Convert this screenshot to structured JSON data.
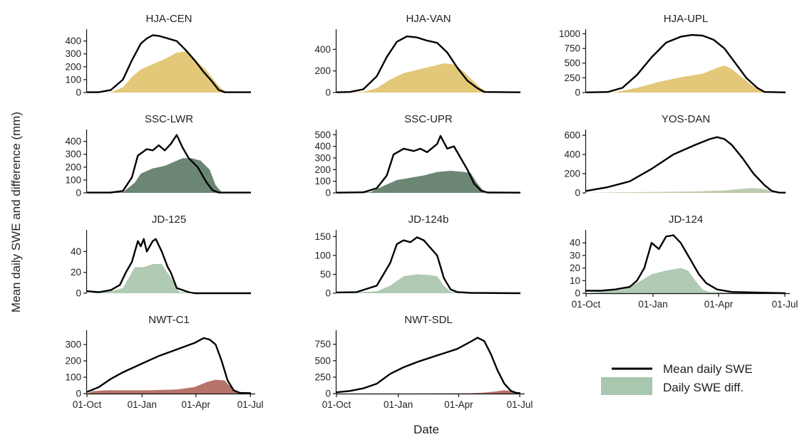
{
  "figure": {
    "ylabel": "Mean daily SWE and difference (mm)",
    "xlabel": "Date"
  },
  "legend": {
    "items": [
      {
        "label": "Mean daily SWE",
        "kind": "line",
        "color": "#000000"
      },
      {
        "label": "Daily SWE diff.",
        "kind": "area",
        "color": "#a9c6ae"
      }
    ]
  },
  "x_ticks": [
    "01-Oct",
    "01-Jan",
    "01-Apr",
    "01-Jul"
  ],
  "chart_data": [
    {
      "type": "area",
      "title": "HJA-CEN",
      "ylim": [
        0,
        470
      ],
      "yticks": [
        0,
        100,
        200,
        300,
        400
      ],
      "diff_color": "#e1c36e",
      "show_x_axis": false,
      "swe": [
        [
          0,
          2
        ],
        [
          20,
          3
        ],
        [
          40,
          20
        ],
        [
          60,
          100
        ],
        [
          75,
          250
        ],
        [
          90,
          380
        ],
        [
          100,
          420
        ],
        [
          110,
          445
        ],
        [
          120,
          440
        ],
        [
          135,
          420
        ],
        [
          150,
          400
        ],
        [
          165,
          330
        ],
        [
          180,
          250
        ],
        [
          195,
          160
        ],
        [
          210,
          80
        ],
        [
          220,
          20
        ],
        [
          230,
          2
        ],
        [
          274,
          2
        ]
      ],
      "diff": [
        [
          0,
          0
        ],
        [
          40,
          3
        ],
        [
          60,
          40
        ],
        [
          75,
          120
        ],
        [
          90,
          180
        ],
        [
          110,
          220
        ],
        [
          130,
          260
        ],
        [
          150,
          310
        ],
        [
          165,
          320
        ],
        [
          180,
          260
        ],
        [
          200,
          170
        ],
        [
          215,
          80
        ],
        [
          225,
          30
        ],
        [
          235,
          3
        ],
        [
          274,
          0
        ]
      ]
    },
    {
      "type": "area",
      "title": "HJA-VAN",
      "ylim": [
        0,
        560
      ],
      "yticks": [
        0,
        200,
        400
      ],
      "diff_color": "#e1c36e",
      "show_x_axis": false,
      "swe": [
        [
          0,
          2
        ],
        [
          20,
          5
        ],
        [
          40,
          30
        ],
        [
          60,
          150
        ],
        [
          75,
          330
        ],
        [
          90,
          470
        ],
        [
          105,
          520
        ],
        [
          120,
          510
        ],
        [
          135,
          480
        ],
        [
          150,
          460
        ],
        [
          165,
          370
        ],
        [
          180,
          230
        ],
        [
          195,
          110
        ],
        [
          210,
          40
        ],
        [
          220,
          5
        ],
        [
          274,
          2
        ]
      ],
      "diff": [
        [
          0,
          0
        ],
        [
          40,
          5
        ],
        [
          60,
          40
        ],
        [
          80,
          120
        ],
        [
          100,
          180
        ],
        [
          120,
          210
        ],
        [
          140,
          240
        ],
        [
          160,
          270
        ],
        [
          175,
          260
        ],
        [
          190,
          190
        ],
        [
          205,
          100
        ],
        [
          215,
          40
        ],
        [
          225,
          5
        ],
        [
          274,
          0
        ]
      ]
    },
    {
      "type": "area",
      "title": "HJA-UPL",
      "ylim": [
        0,
        1030
      ],
      "yticks": [
        0,
        250,
        500,
        750,
        1000
      ],
      "diff_color": "#e1c36e",
      "show_x_axis": false,
      "swe": [
        [
          0,
          3
        ],
        [
          30,
          10
        ],
        [
          50,
          80
        ],
        [
          70,
          300
        ],
        [
          90,
          600
        ],
        [
          110,
          850
        ],
        [
          130,
          950
        ],
        [
          145,
          980
        ],
        [
          160,
          970
        ],
        [
          175,
          900
        ],
        [
          190,
          750
        ],
        [
          205,
          500
        ],
        [
          220,
          250
        ],
        [
          235,
          80
        ],
        [
          245,
          10
        ],
        [
          274,
          3
        ]
      ],
      "diff": [
        [
          0,
          0
        ],
        [
          40,
          5
        ],
        [
          70,
          80
        ],
        [
          100,
          180
        ],
        [
          130,
          260
        ],
        [
          160,
          320
        ],
        [
          180,
          420
        ],
        [
          190,
          460
        ],
        [
          200,
          400
        ],
        [
          215,
          250
        ],
        [
          230,
          100
        ],
        [
          240,
          30
        ],
        [
          250,
          3
        ],
        [
          274,
          0
        ]
      ]
    },
    {
      "type": "area",
      "title": "SSC-LWR",
      "ylim": [
        0,
        470
      ],
      "yticks": [
        0,
        100,
        200,
        300,
        400
      ],
      "diff_color": "#5f7c68",
      "show_x_axis": false,
      "swe": [
        [
          0,
          2
        ],
        [
          40,
          3
        ],
        [
          60,
          15
        ],
        [
          75,
          120
        ],
        [
          85,
          290
        ],
        [
          100,
          340
        ],
        [
          110,
          330
        ],
        [
          120,
          370
        ],
        [
          130,
          330
        ],
        [
          140,
          380
        ],
        [
          150,
          450
        ],
        [
          160,
          350
        ],
        [
          170,
          270
        ],
        [
          185,
          200
        ],
        [
          200,
          80
        ],
        [
          210,
          20
        ],
        [
          220,
          3
        ],
        [
          274,
          2
        ]
      ],
      "diff": [
        [
          0,
          0
        ],
        [
          60,
          5
        ],
        [
          80,
          80
        ],
        [
          90,
          150
        ],
        [
          110,
          190
        ],
        [
          130,
          210
        ],
        [
          150,
          250
        ],
        [
          160,
          270
        ],
        [
          175,
          270
        ],
        [
          190,
          250
        ],
        [
          205,
          180
        ],
        [
          215,
          60
        ],
        [
          225,
          5
        ],
        [
          274,
          0
        ]
      ]
    },
    {
      "type": "area",
      "title": "SSC-UPR",
      "ylim": [
        0,
        520
      ],
      "yticks": [
        0,
        100,
        200,
        300,
        400,
        500
      ],
      "diff_color": "#5f7c68",
      "show_x_axis": false,
      "swe": [
        [
          0,
          2
        ],
        [
          40,
          5
        ],
        [
          60,
          40
        ],
        [
          75,
          150
        ],
        [
          85,
          330
        ],
        [
          100,
          380
        ],
        [
          115,
          360
        ],
        [
          125,
          380
        ],
        [
          135,
          350
        ],
        [
          150,
          420
        ],
        [
          155,
          490
        ],
        [
          165,
          380
        ],
        [
          175,
          400
        ],
        [
          185,
          300
        ],
        [
          195,
          200
        ],
        [
          205,
          80
        ],
        [
          215,
          20
        ],
        [
          225,
          3
        ],
        [
          274,
          2
        ]
      ],
      "diff": [
        [
          0,
          0
        ],
        [
          50,
          5
        ],
        [
          70,
          60
        ],
        [
          90,
          110
        ],
        [
          110,
          130
        ],
        [
          130,
          150
        ],
        [
          150,
          180
        ],
        [
          170,
          190
        ],
        [
          190,
          180
        ],
        [
          200,
          170
        ],
        [
          210,
          80
        ],
        [
          220,
          10
        ],
        [
          274,
          0
        ]
      ]
    },
    {
      "type": "area",
      "title": "YOS-DAN",
      "ylim": [
        0,
        630
      ],
      "yticks": [
        0,
        200,
        400,
        600
      ],
      "diff_color": "#b9c8a7",
      "show_x_axis": false,
      "swe": [
        [
          0,
          20
        ],
        [
          30,
          60
        ],
        [
          60,
          120
        ],
        [
          90,
          250
        ],
        [
          120,
          400
        ],
        [
          150,
          500
        ],
        [
          170,
          560
        ],
        [
          180,
          580
        ],
        [
          190,
          560
        ],
        [
          200,
          500
        ],
        [
          215,
          360
        ],
        [
          230,
          200
        ],
        [
          245,
          80
        ],
        [
          255,
          20
        ],
        [
          265,
          3
        ],
        [
          274,
          2
        ]
      ],
      "diff": [
        [
          0,
          0
        ],
        [
          40,
          5
        ],
        [
          90,
          10
        ],
        [
          150,
          15
        ],
        [
          190,
          25
        ],
        [
          210,
          40
        ],
        [
          230,
          50
        ],
        [
          245,
          40
        ],
        [
          255,
          20
        ],
        [
          265,
          5
        ],
        [
          274,
          0
        ]
      ]
    },
    {
      "type": "area",
      "title": "JD-125",
      "ylim": [
        0,
        58
      ],
      "yticks": [
        0,
        20,
        40
      ],
      "diff_color": "#a9c6ae",
      "show_x_axis": false,
      "swe": [
        [
          0,
          2
        ],
        [
          20,
          1
        ],
        [
          40,
          3
        ],
        [
          55,
          8
        ],
        [
          65,
          20
        ],
        [
          75,
          30
        ],
        [
          85,
          50
        ],
        [
          90,
          45
        ],
        [
          95,
          52
        ],
        [
          100,
          40
        ],
        [
          110,
          50
        ],
        [
          115,
          52
        ],
        [
          125,
          40
        ],
        [
          135,
          25
        ],
        [
          140,
          20
        ],
        [
          150,
          5
        ],
        [
          160,
          3
        ],
        [
          170,
          1
        ],
        [
          180,
          0
        ],
        [
          274,
          0
        ]
      ],
      "diff": [
        [
          0,
          0
        ],
        [
          40,
          2
        ],
        [
          60,
          5
        ],
        [
          70,
          15
        ],
        [
          80,
          25
        ],
        [
          95,
          25
        ],
        [
          110,
          28
        ],
        [
          125,
          28
        ],
        [
          140,
          15
        ],
        [
          150,
          5
        ],
        [
          155,
          1
        ],
        [
          274,
          0
        ]
      ]
    },
    {
      "type": "area",
      "title": "JD-124b",
      "ylim": [
        0,
        160
      ],
      "yticks": [
        0,
        50,
        100,
        150
      ],
      "diff_color": "#a9c6ae",
      "show_x_axis": false,
      "swe": [
        [
          0,
          2
        ],
        [
          30,
          3
        ],
        [
          60,
          20
        ],
        [
          80,
          80
        ],
        [
          90,
          130
        ],
        [
          100,
          140
        ],
        [
          110,
          135
        ],
        [
          120,
          148
        ],
        [
          130,
          140
        ],
        [
          140,
          120
        ],
        [
          150,
          100
        ],
        [
          160,
          40
        ],
        [
          170,
          10
        ],
        [
          180,
          3
        ],
        [
          200,
          1
        ],
        [
          274,
          0
        ]
      ],
      "diff": [
        [
          0,
          0
        ],
        [
          60,
          5
        ],
        [
          80,
          20
        ],
        [
          100,
          45
        ],
        [
          120,
          50
        ],
        [
          140,
          48
        ],
        [
          150,
          45
        ],
        [
          160,
          20
        ],
        [
          170,
          3
        ],
        [
          274,
          0
        ]
      ]
    },
    {
      "type": "area",
      "title": "JD-124",
      "ylim": [
        0,
        48
      ],
      "yticks": [
        0,
        10,
        20,
        30,
        40
      ],
      "diff_color": "#a9c6ae",
      "show_x_axis": true,
      "swe": [
        [
          0,
          2
        ],
        [
          20,
          2
        ],
        [
          40,
          3
        ],
        [
          60,
          5
        ],
        [
          70,
          10
        ],
        [
          80,
          20
        ],
        [
          90,
          40
        ],
        [
          100,
          35
        ],
        [
          110,
          45
        ],
        [
          120,
          46
        ],
        [
          130,
          40
        ],
        [
          140,
          30
        ],
        [
          145,
          25
        ],
        [
          155,
          15
        ],
        [
          165,
          8
        ],
        [
          180,
          3
        ],
        [
          200,
          1
        ],
        [
          274,
          0
        ]
      ],
      "diff": [
        [
          0,
          0
        ],
        [
          50,
          3
        ],
        [
          70,
          8
        ],
        [
          90,
          15
        ],
        [
          110,
          18
        ],
        [
          130,
          20
        ],
        [
          140,
          18
        ],
        [
          150,
          10
        ],
        [
          160,
          3
        ],
        [
          170,
          1
        ],
        [
          274,
          0
        ]
      ]
    },
    {
      "type": "area",
      "title": "NWT-C1",
      "ylim": [
        0,
        370
      ],
      "yticks": [
        0,
        100,
        200,
        300
      ],
      "diff_color": "#b0675c",
      "show_x_axis": true,
      "swe": [
        [
          0,
          10
        ],
        [
          20,
          40
        ],
        [
          40,
          90
        ],
        [
          60,
          130
        ],
        [
          90,
          180
        ],
        [
          120,
          230
        ],
        [
          150,
          270
        ],
        [
          180,
          310
        ],
        [
          195,
          340
        ],
        [
          205,
          330
        ],
        [
          215,
          300
        ],
        [
          225,
          200
        ],
        [
          235,
          80
        ],
        [
          245,
          20
        ],
        [
          255,
          5
        ],
        [
          274,
          2
        ]
      ],
      "diff": [
        [
          0,
          0
        ],
        [
          10,
          15
        ],
        [
          30,
          20
        ],
        [
          100,
          20
        ],
        [
          150,
          25
        ],
        [
          180,
          40
        ],
        [
          200,
          70
        ],
        [
          215,
          85
        ],
        [
          230,
          80
        ],
        [
          240,
          40
        ],
        [
          250,
          10
        ],
        [
          260,
          2
        ],
        [
          274,
          0
        ]
      ]
    },
    {
      "type": "area",
      "title": "NWT-SDL",
      "ylim": [
        0,
        920
      ],
      "yticks": [
        0,
        250,
        500,
        750
      ],
      "diff_color": "#b0675c",
      "show_x_axis": true,
      "swe": [
        [
          0,
          20
        ],
        [
          20,
          40
        ],
        [
          40,
          80
        ],
        [
          60,
          150
        ],
        [
          80,
          300
        ],
        [
          100,
          400
        ],
        [
          120,
          480
        ],
        [
          150,
          580
        ],
        [
          180,
          680
        ],
        [
          200,
          790
        ],
        [
          210,
          850
        ],
        [
          220,
          800
        ],
        [
          230,
          600
        ],
        [
          240,
          350
        ],
        [
          250,
          150
        ],
        [
          260,
          40
        ],
        [
          268,
          10
        ],
        [
          274,
          5
        ]
      ],
      "diff": [
        [
          0,
          0
        ],
        [
          150,
          2
        ],
        [
          200,
          5
        ],
        [
          220,
          15
        ],
        [
          235,
          30
        ],
        [
          250,
          50
        ],
        [
          260,
          40
        ],
        [
          268,
          15
        ],
        [
          274,
          3
        ]
      ]
    }
  ]
}
